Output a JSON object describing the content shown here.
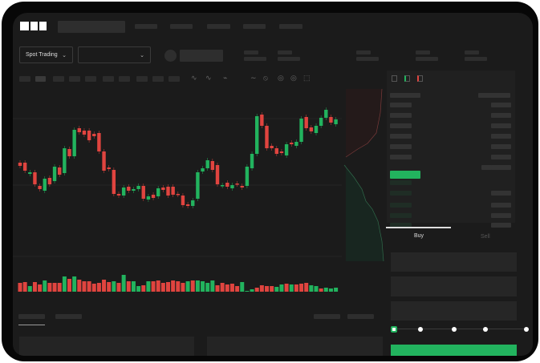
{
  "brand": {
    "logo_text": "OKX"
  },
  "toolbar": {
    "market_selector": "Spot Trading"
  },
  "trade_panel": {
    "tabs": [
      "Buy",
      "Sell"
    ],
    "active_tab": "Buy",
    "slider_percent": 0
  },
  "colors": {
    "up": "#22b35e",
    "down": "#e0443f",
    "background": "#1b1b1b",
    "frame": "#070707"
  },
  "icons": [
    "chevron-down-icon",
    "orderbook-both-icon",
    "orderbook-bids-icon",
    "orderbook-asks-icon",
    "indicator-icon",
    "draw-line-icon",
    "settings-icon",
    "fullscreen-icon"
  ]
}
